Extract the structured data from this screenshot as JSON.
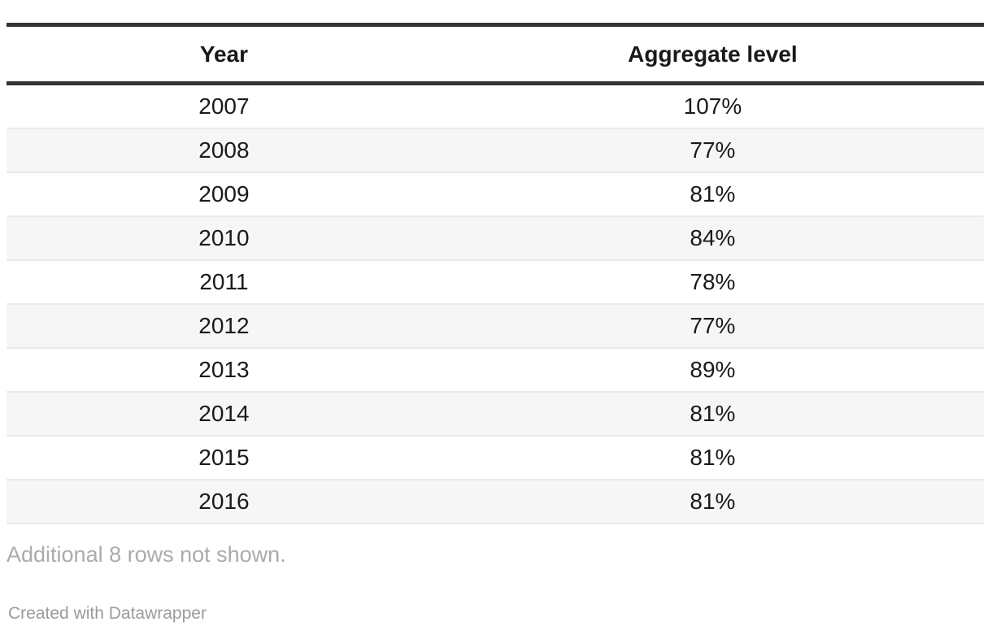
{
  "table": {
    "columns": [
      {
        "label": "Year"
      },
      {
        "label": "Aggregate level"
      }
    ],
    "rows": [
      {
        "year": "2007",
        "value": "107%"
      },
      {
        "year": "2008",
        "value": "77%"
      },
      {
        "year": "2009",
        "value": "81%"
      },
      {
        "year": "2010",
        "value": "84%"
      },
      {
        "year": "2011",
        "value": "78%"
      },
      {
        "year": "2012",
        "value": "77%"
      },
      {
        "year": "2013",
        "value": "89%"
      },
      {
        "year": "2014",
        "value": "81%"
      },
      {
        "year": "2015",
        "value": "81%"
      },
      {
        "year": "2016",
        "value": "81%"
      }
    ]
  },
  "footer": {
    "note": "Additional 8 rows not shown.",
    "attribution": "Created with Datawrapper"
  },
  "colors": {
    "rule_dark": "#333333",
    "row_alt_bg": "#f6f6f6",
    "row_separator": "#eaeaea",
    "text": "#1a1a1a",
    "note_gray": "#ababab",
    "attribution_gray": "#9b9b9b"
  },
  "chart_data": {
    "type": "table",
    "title": "",
    "columns": [
      "Year",
      "Aggregate level"
    ],
    "categories": [
      "2007",
      "2008",
      "2009",
      "2010",
      "2011",
      "2012",
      "2013",
      "2014",
      "2015",
      "2016"
    ],
    "values": [
      107,
      77,
      81,
      84,
      78,
      77,
      89,
      81,
      81,
      81
    ],
    "unit": "%",
    "note": "Additional 8 rows not shown.",
    "hidden_rows_count": 8
  }
}
